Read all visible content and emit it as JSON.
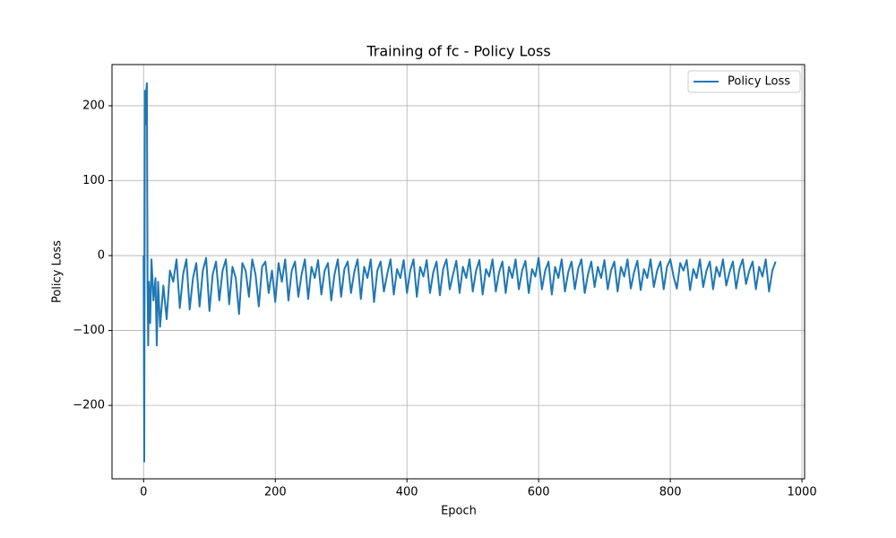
{
  "chart_data": {
    "type": "line",
    "title": "Training of fc - Policy Loss",
    "xlabel": "Epoch",
    "ylabel": "Policy Loss",
    "xlim": [
      -48,
      1004
    ],
    "ylim": [
      -298,
      255
    ],
    "xticks": [
      0,
      200,
      400,
      600,
      800,
      1000
    ],
    "yticks": [
      {
        "value": -200,
        "label": "−200"
      },
      {
        "value": -100,
        "label": "−100"
      },
      0,
      100,
      200
    ],
    "grid": true,
    "legend": "upper right",
    "x": [
      0,
      1,
      2,
      3,
      4,
      5,
      6,
      7,
      8,
      10,
      12,
      15,
      18,
      20,
      22,
      25,
      30,
      35,
      40,
      45,
      50,
      55,
      60,
      65,
      70,
      75,
      80,
      85,
      90,
      95,
      100,
      105,
      110,
      115,
      120,
      125,
      130,
      135,
      140,
      145,
      150,
      155,
      160,
      165,
      170,
      175,
      180,
      185,
      190,
      195,
      200,
      205,
      210,
      215,
      220,
      225,
      230,
      235,
      240,
      245,
      250,
      255,
      260,
      265,
      270,
      275,
      280,
      285,
      290,
      295,
      300,
      305,
      310,
      315,
      320,
      325,
      330,
      335,
      340,
      345,
      350,
      355,
      360,
      365,
      370,
      375,
      380,
      385,
      390,
      395,
      400,
      405,
      410,
      415,
      420,
      425,
      430,
      435,
      440,
      445,
      450,
      455,
      460,
      465,
      470,
      475,
      480,
      485,
      490,
      495,
      500,
      505,
      510,
      515,
      520,
      525,
      530,
      535,
      540,
      545,
      550,
      555,
      560,
      565,
      570,
      575,
      580,
      585,
      590,
      595,
      600,
      605,
      610,
      615,
      620,
      625,
      630,
      635,
      640,
      645,
      650,
      655,
      660,
      665,
      670,
      675,
      680,
      685,
      690,
      695,
      700,
      705,
      710,
      715,
      720,
      725,
      730,
      735,
      740,
      745,
      750,
      755,
      760,
      765,
      770,
      775,
      780,
      785,
      790,
      795,
      800,
      805,
      810,
      815,
      820,
      825,
      830,
      835,
      840,
      845,
      850,
      855,
      860,
      865,
      870,
      875,
      880,
      885,
      890,
      895,
      900,
      905,
      910,
      915,
      920,
      925,
      930,
      935,
      940,
      945,
      950,
      955,
      960
    ],
    "series": [
      {
        "name": "Policy Loss",
        "color": "#1f77b4",
        "values": [
          0,
          -275,
          220,
          175,
          220,
          230,
          -40,
          -120,
          -35,
          -90,
          -5,
          -60,
          -30,
          -120,
          -35,
          -95,
          -40,
          -85,
          -20,
          -35,
          -5,
          -70,
          -25,
          -5,
          -72,
          -30,
          -10,
          -68,
          -20,
          -3,
          -74,
          -25,
          -8,
          -60,
          -20,
          -5,
          -65,
          -15,
          -30,
          -78,
          -10,
          -20,
          -55,
          -5,
          -25,
          -68,
          -15,
          -8,
          -50,
          -20,
          -62,
          -10,
          -35,
          -5,
          -60,
          -20,
          -8,
          -55,
          -25,
          -5,
          -58,
          -15,
          -30,
          -6,
          -52,
          -20,
          -10,
          -60,
          -25,
          -5,
          -55,
          -18,
          -8,
          -50,
          -22,
          -5,
          -58,
          -15,
          -30,
          -5,
          -62,
          -20,
          -8,
          -48,
          -25,
          -5,
          -52,
          -18,
          -30,
          -6,
          -50,
          -20,
          -5,
          -55,
          -15,
          -28,
          -6,
          -50,
          -22,
          -8,
          -53,
          -18,
          -5,
          -45,
          -25,
          -7,
          -50,
          -15,
          -30,
          -5,
          -48,
          -20,
          -6,
          -52,
          -18,
          -28,
          -5,
          -48,
          -22,
          -8,
          -50,
          -15,
          -30,
          -5,
          -45,
          -20,
          -7,
          -50,
          -18,
          -28,
          -3,
          -45,
          -20,
          -8,
          -52,
          -15,
          -30,
          -5,
          -48,
          -22,
          -8,
          -45,
          -18,
          -5,
          -50,
          -25,
          -8,
          -42,
          -15,
          -30,
          -6,
          -45,
          -20,
          -8,
          -48,
          -15,
          -28,
          -5,
          -44,
          -22,
          -7,
          -46,
          -18,
          -30,
          -5,
          -42,
          -20,
          -8,
          -45,
          -15,
          -5,
          -28,
          -44,
          -10,
          -20,
          -6,
          -46,
          -18,
          -30,
          -5,
          -42,
          -20,
          -8,
          -45,
          -15,
          -28,
          -5,
          -40,
          -22,
          -8,
          -44,
          -18,
          -5,
          -38,
          -20,
          -8,
          -45,
          -15,
          -28,
          -5,
          -48,
          -20,
          -8
        ]
      }
    ]
  }
}
